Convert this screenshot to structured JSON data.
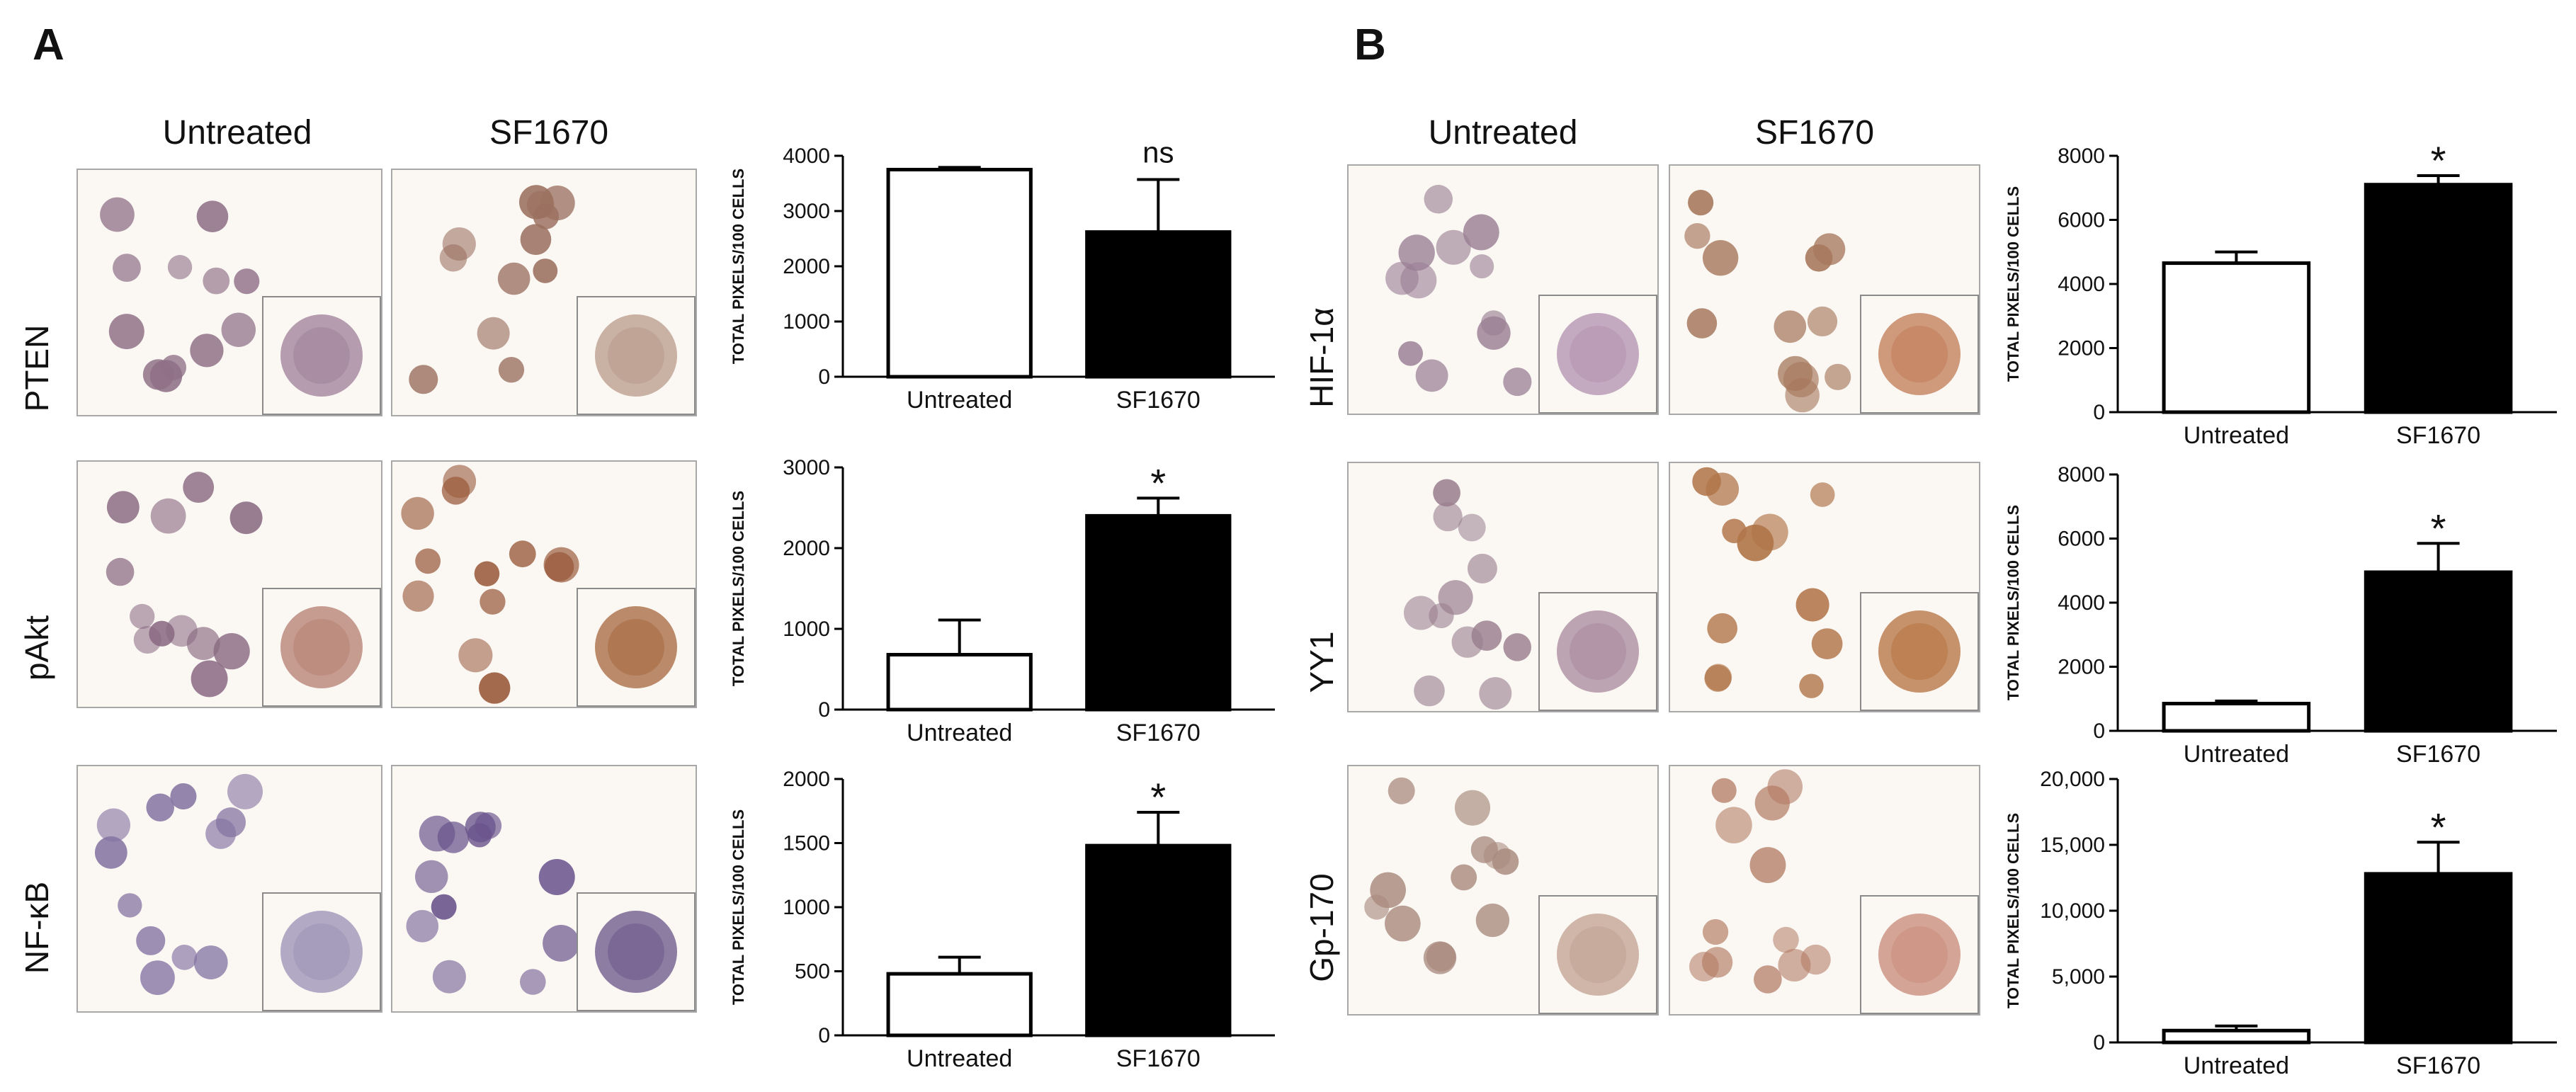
{
  "panels": [
    {
      "letter": "A",
      "col_headers": [
        "Untreated",
        "SF1670"
      ],
      "rows": [
        {
          "label": "PTEN",
          "stain_colors": [
            "#8e6f86",
            "#9b7060"
          ],
          "inset_colors": [
            "#9d7f98",
            "#b89a8a"
          ]
        },
        {
          "label": "pAkt",
          "stain_colors": [
            "#8a6a82",
            "#9a5a3c"
          ],
          "inset_colors": [
            "#b47e70",
            "#a4663c"
          ]
        },
        {
          "label": "NF-κB",
          "stain_colors": [
            "#8474a2",
            "#6a548c"
          ],
          "inset_colors": [
            "#9a90b4",
            "#6a5488"
          ]
        }
      ]
    },
    {
      "letter": "B",
      "col_headers": [
        "Untreated",
        "SF1670"
      ],
      "rows": [
        {
          "label": "HIF-1α",
          "stain_colors": [
            "#9a7f94",
            "#a7795e"
          ],
          "inset_colors": [
            "#b290b0",
            "#c07a54"
          ]
        },
        {
          "label": "YY1",
          "stain_colors": [
            "#9a7f8e",
            "#b07448"
          ],
          "inset_colors": [
            "#a8889c",
            "#b4703e"
          ]
        },
        {
          "label": "Gp-170",
          "stain_colors": [
            "#a98a7e",
            "#b27a62"
          ],
          "inset_colors": [
            "#c0a090",
            "#c78a78"
          ]
        }
      ]
    }
  ],
  "chart_data": [
    {
      "type": "bar",
      "panel": "A",
      "row": "PTEN",
      "categories": [
        "Untreated",
        "SF1670"
      ],
      "values": [
        3750,
        2620
      ],
      "errors": [
        40,
        950
      ],
      "bar_colors": [
        "#ffffff",
        "#000000"
      ],
      "annotation": "ns",
      "ylabel": "TOTAL PIXELS/100 CELLS",
      "ylim": [
        0,
        4000
      ],
      "yticks": [
        0,
        1000,
        2000,
        3000,
        4000
      ],
      "ytick_labels": [
        "0",
        "1000",
        "2000",
        "3000",
        "4000"
      ]
    },
    {
      "type": "bar",
      "panel": "A",
      "row": "pAkt",
      "categories": [
        "Untreated",
        "SF1670"
      ],
      "values": [
        680,
        2400
      ],
      "errors": [
        430,
        220
      ],
      "bar_colors": [
        "#ffffff",
        "#000000"
      ],
      "annotation": "*",
      "ylabel": "TOTAL PIXELS/100 CELLS",
      "ylim": [
        0,
        3000
      ],
      "yticks": [
        0,
        1000,
        2000,
        3000
      ],
      "ytick_labels": [
        "0",
        "1000",
        "2000",
        "3000"
      ]
    },
    {
      "type": "bar",
      "panel": "A",
      "row": "NF-κB",
      "categories": [
        "Untreated",
        "SF1670"
      ],
      "values": [
        480,
        1480
      ],
      "errors": [
        130,
        260
      ],
      "bar_colors": [
        "#ffffff",
        "#000000"
      ],
      "annotation": "*",
      "ylabel": "TOTAL PIXELS/100 CELLS",
      "ylim": [
        0,
        2000
      ],
      "yticks": [
        0,
        500,
        1000,
        1500,
        2000
      ],
      "ytick_labels": [
        "0",
        "500",
        "1000",
        "1500",
        "2000"
      ]
    },
    {
      "type": "bar",
      "panel": "B",
      "row": "HIF-1α",
      "categories": [
        "Untreated",
        "SF1670"
      ],
      "values": [
        4650,
        7100
      ],
      "errors": [
        350,
        280
      ],
      "bar_colors": [
        "#ffffff",
        "#000000"
      ],
      "annotation": "*",
      "ylabel": "TOTAL PIXELS/100 CELLS",
      "ylim": [
        0,
        8000
      ],
      "yticks": [
        0,
        2000,
        4000,
        6000,
        8000
      ],
      "ytick_labels": [
        "0",
        "2000",
        "4000",
        "6000",
        "8000"
      ]
    },
    {
      "type": "bar",
      "panel": "B",
      "row": "YY1",
      "categories": [
        "Untreated",
        "SF1670"
      ],
      "values": [
        850,
        4950
      ],
      "errors": [
        80,
        900
      ],
      "bar_colors": [
        "#ffffff",
        "#000000"
      ],
      "annotation": "*",
      "ylabel": "TOTAL PIXELS/100 CELLS",
      "ylim": [
        0,
        8000
      ],
      "yticks": [
        0,
        2000,
        4000,
        6000,
        8000
      ],
      "ytick_labels": [
        "0",
        "2000",
        "4000",
        "6000",
        "8000"
      ]
    },
    {
      "type": "bar",
      "panel": "B",
      "row": "Gp-170",
      "categories": [
        "Untreated",
        "SF1670"
      ],
      "values": [
        900,
        12800
      ],
      "errors": [
        350,
        2400
      ],
      "bar_colors": [
        "#ffffff",
        "#000000"
      ],
      "annotation": "*",
      "ylabel": "TOTAL PIXELS/100 CELLS",
      "ylim": [
        0,
        20000
      ],
      "yticks": [
        0,
        5000,
        10000,
        15000,
        20000
      ],
      "ytick_labels": [
        "0",
        "5,000",
        "10,000",
        "15,000",
        "20,000"
      ]
    }
  ]
}
